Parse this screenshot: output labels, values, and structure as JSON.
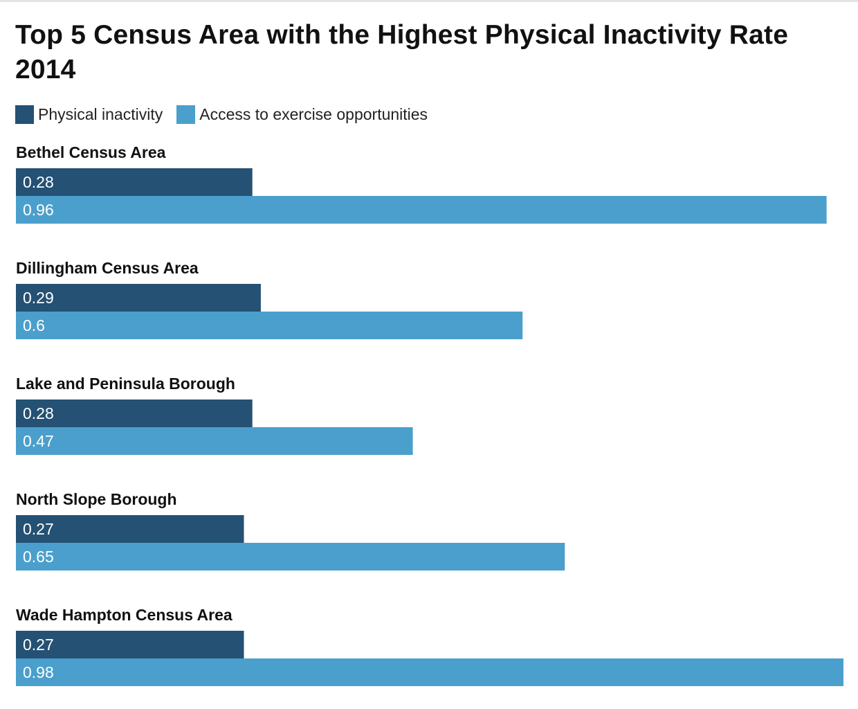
{
  "chart_data": {
    "type": "bar",
    "orientation": "horizontal",
    "title": "Top 5 Census Area with the Highest Physical Inactivity Rate 2014",
    "categories": [
      "Bethel Census Area",
      "Dillingham Census Area",
      "Lake and Peninsula Borough",
      "North Slope Borough",
      "Wade Hampton Census Area"
    ],
    "series": [
      {
        "name": "Physical inactivity",
        "color": "#245174",
        "values": [
          0.28,
          0.29,
          0.28,
          0.27,
          0.27
        ],
        "labels": [
          "0.28",
          "0.29",
          "0.28",
          "0.27",
          "0.27"
        ]
      },
      {
        "name": "Access to exercise opportunities",
        "color": "#4b9fcc",
        "values": [
          0.96,
          0.6,
          0.47,
          0.65,
          0.98
        ],
        "labels": [
          "0.96",
          "0.6",
          "0.47",
          "0.65",
          "0.98"
        ]
      }
    ],
    "xlim": [
      0,
      0.98
    ],
    "legend_position": "top-left",
    "grid": false
  }
}
